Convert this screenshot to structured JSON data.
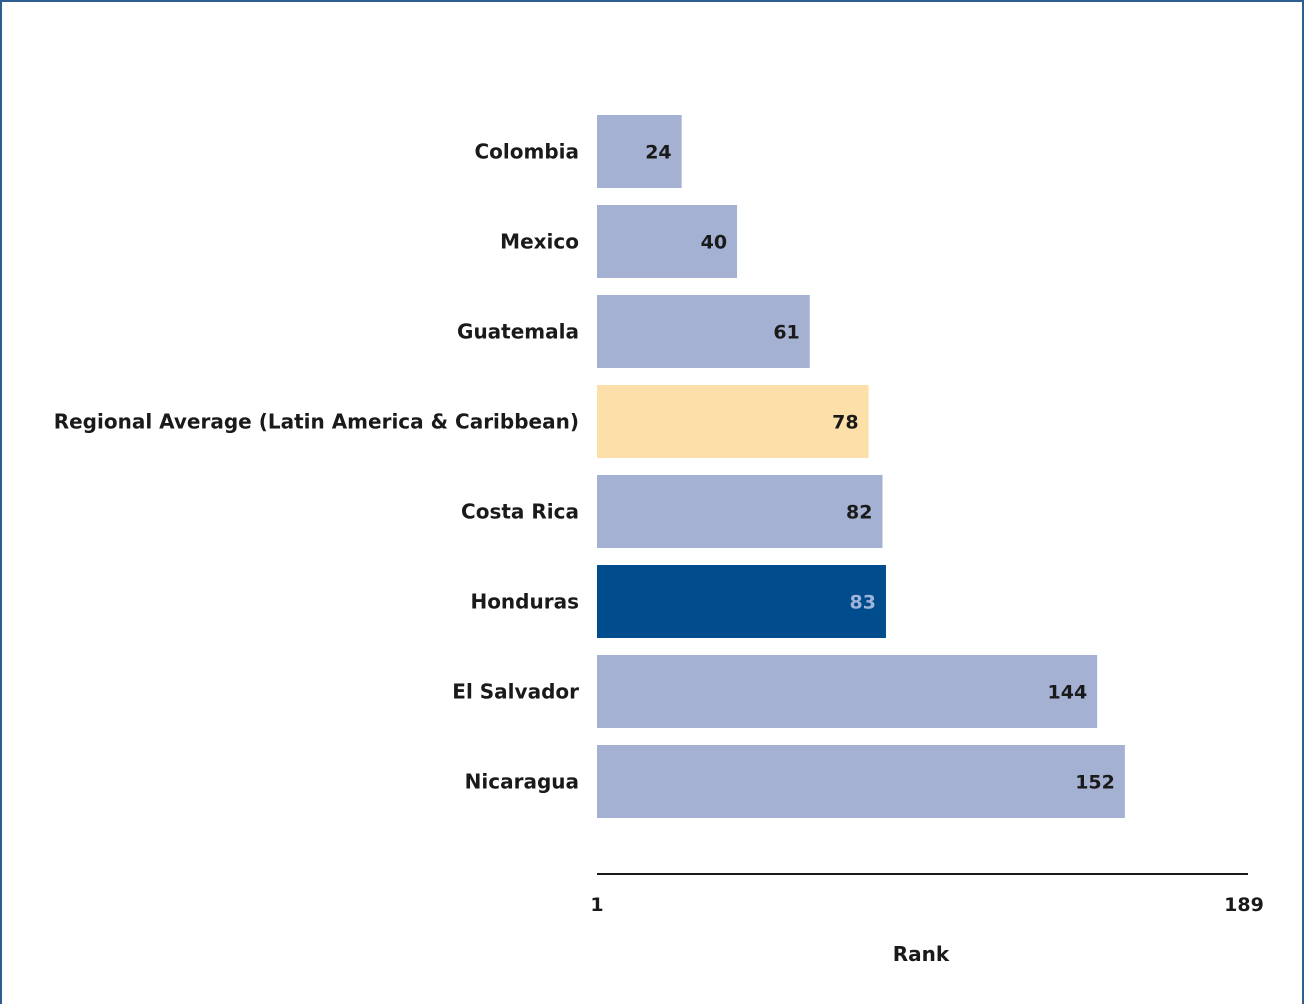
{
  "chart_data": {
    "type": "bar",
    "orientation": "horizontal",
    "categories": [
      "Colombia",
      "Mexico",
      "Guatemala",
      "Regional Average (Latin America & Caribbean)",
      "Costa Rica",
      "Honduras",
      "El Salvador",
      "Nicaragua"
    ],
    "values": [
      24,
      40,
      61,
      78,
      82,
      83,
      144,
      152
    ],
    "bar_colors": [
      "#a4b1d3",
      "#a4b1d3",
      "#a4b1d3",
      "#fde0a9",
      "#a4b1d3",
      "#004c8d",
      "#a4b1d3",
      "#a4b1d3"
    ],
    "value_label_colors": [
      "#1a1a1a",
      "#1a1a1a",
      "#1a1a1a",
      "#1a1a1a",
      "#1a1a1a",
      "#9fb4d8",
      "#1a1a1a",
      "#1a1a1a"
    ],
    "xlabel": "Rank",
    "ylabel": "",
    "xlim": [
      1,
      189
    ],
    "tick_labels": [
      "1",
      "189"
    ],
    "grid": false,
    "legend": "none"
  }
}
